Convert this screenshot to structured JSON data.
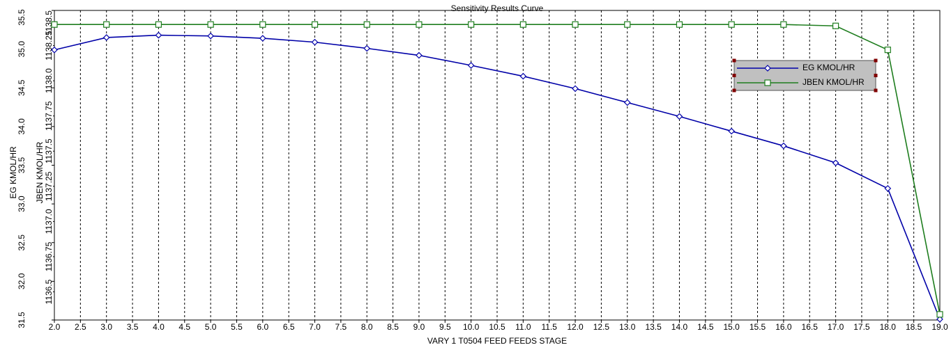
{
  "chart_data": {
    "type": "line",
    "title": "Sensitivity Results Curve",
    "xlabel": "VARY   1 T0504 FEED FEEDS STAGE",
    "ylabel": "EG KMOL/HR",
    "y2label": "JBEN KMOL/HR",
    "x": [
      2,
      3,
      4,
      5,
      6,
      7,
      8,
      9,
      10,
      11,
      12,
      13,
      14,
      15,
      16,
      17,
      18,
      19
    ],
    "series": [
      {
        "name": "EG KMOL/HR",
        "color": "#0000a8",
        "marker": "diamond",
        "values": [
          34.99,
          35.15,
          35.18,
          35.17,
          35.14,
          35.09,
          35.01,
          34.92,
          34.79,
          34.65,
          34.49,
          34.31,
          34.13,
          33.94,
          33.75,
          33.53,
          33.2,
          31.51
        ]
      },
      {
        "name": "JBEN KMOL/HR",
        "color": "#1e7d1e",
        "marker": "square",
        "axis": "y2",
        "values": [
          1138.4,
          1138.4,
          1138.4,
          1138.4,
          1138.4,
          1138.4,
          1138.4,
          1138.4,
          1138.4,
          1138.4,
          1138.4,
          1138.4,
          1138.4,
          1138.4,
          1138.4,
          1138.39,
          1138.22,
          1136.34
        ]
      }
    ],
    "xlim": [
      2,
      19
    ],
    "xticks": [
      {
        "value": 2,
        "label": "2.0"
      },
      2.5,
      {
        "value": 3,
        "label": "3.0"
      },
      3.5,
      {
        "value": 4,
        "label": "4.0"
      },
      4.5,
      {
        "value": 5,
        "label": "5.0"
      },
      5.5,
      {
        "value": 6,
        "label": "6.0"
      },
      6.5,
      {
        "value": 7,
        "label": "7.0"
      },
      7.5,
      {
        "value": 8,
        "label": "8.0"
      },
      8.5,
      {
        "value": 9,
        "label": "9.0"
      },
      9.5,
      {
        "value": 10,
        "label": "10.0"
      },
      10.5,
      {
        "value": 11,
        "label": "11.0"
      },
      11.5,
      {
        "value": 12,
        "label": "12.0"
      },
      12.5,
      {
        "value": 13,
        "label": "13.0"
      },
      13.5,
      {
        "value": 14,
        "label": "14.0"
      },
      14.5,
      {
        "value": 15,
        "label": "15.0"
      },
      15.5,
      {
        "value": 16,
        "label": "16.0"
      },
      16.5,
      {
        "value": 17,
        "label": "17.0"
      },
      17.5,
      {
        "value": 18,
        "label": "18.0"
      },
      18.5,
      {
        "value": 19,
        "label": "19.0"
      }
    ],
    "ylim": [
      31.5,
      35.5
    ],
    "yticks": [
      31.5,
      {
        "value": 32,
        "label": "32.0"
      },
      32.5,
      {
        "value": 33,
        "label": "33.0"
      },
      33.5,
      {
        "value": 34,
        "label": "34.0"
      },
      34.5,
      {
        "value": 35,
        "label": "35.0"
      },
      35.5
    ],
    "y2lim": [
      1136.3,
      1138.5
    ],
    "y2ticks": [
      1136.5,
      1136.75,
      {
        "value": 1137,
        "label": "1137.0"
      },
      1137.25,
      1137.5,
      1137.75,
      {
        "value": 1138,
        "label": "1138.0"
      },
      1138.25,
      1138.5
    ],
    "grid": true,
    "legend": "upper right"
  }
}
